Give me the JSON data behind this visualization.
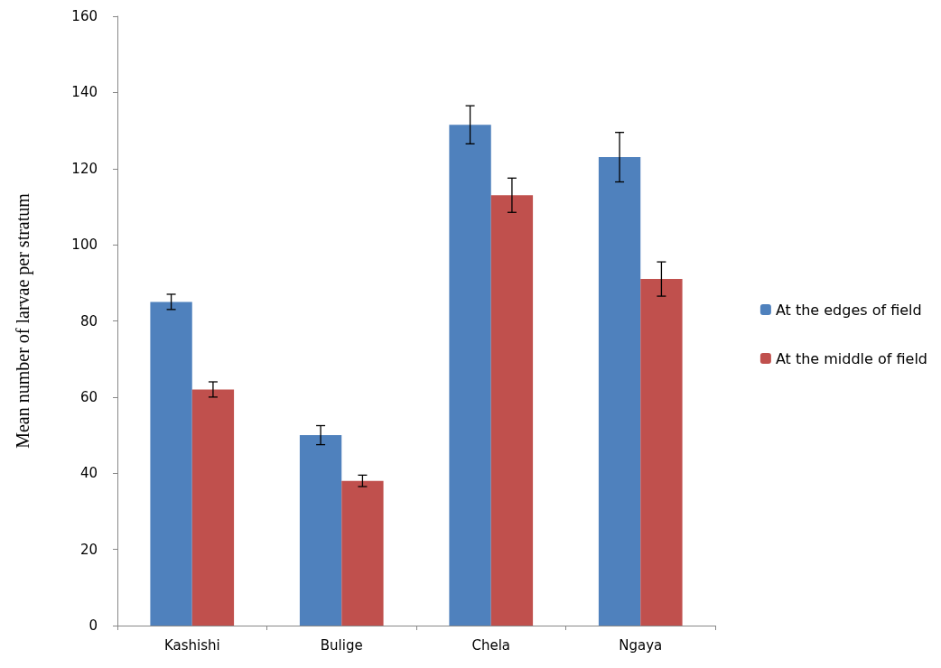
{
  "chart_data": {
    "type": "bar",
    "ylabel": "Mean number of larvae per stratum",
    "categories": [
      "Kashishi",
      "Bulige",
      "Chela",
      "Ngaya"
    ],
    "series": [
      {
        "name": "At the edges of field",
        "color": "#4f81bd",
        "values": [
          85,
          50,
          131.5,
          123
        ],
        "errors": [
          2,
          2.5,
          5,
          6.5
        ]
      },
      {
        "name": "At the middle of field",
        "color": "#c0504d",
        "values": [
          62,
          38,
          113,
          91
        ],
        "errors": [
          2,
          1.5,
          4.5,
          4.5
        ]
      }
    ],
    "ylim": [
      0,
      160
    ],
    "yticks": [
      0,
      20,
      40,
      60,
      80,
      100,
      120,
      140,
      160
    ],
    "grid": false,
    "legend": "right"
  }
}
